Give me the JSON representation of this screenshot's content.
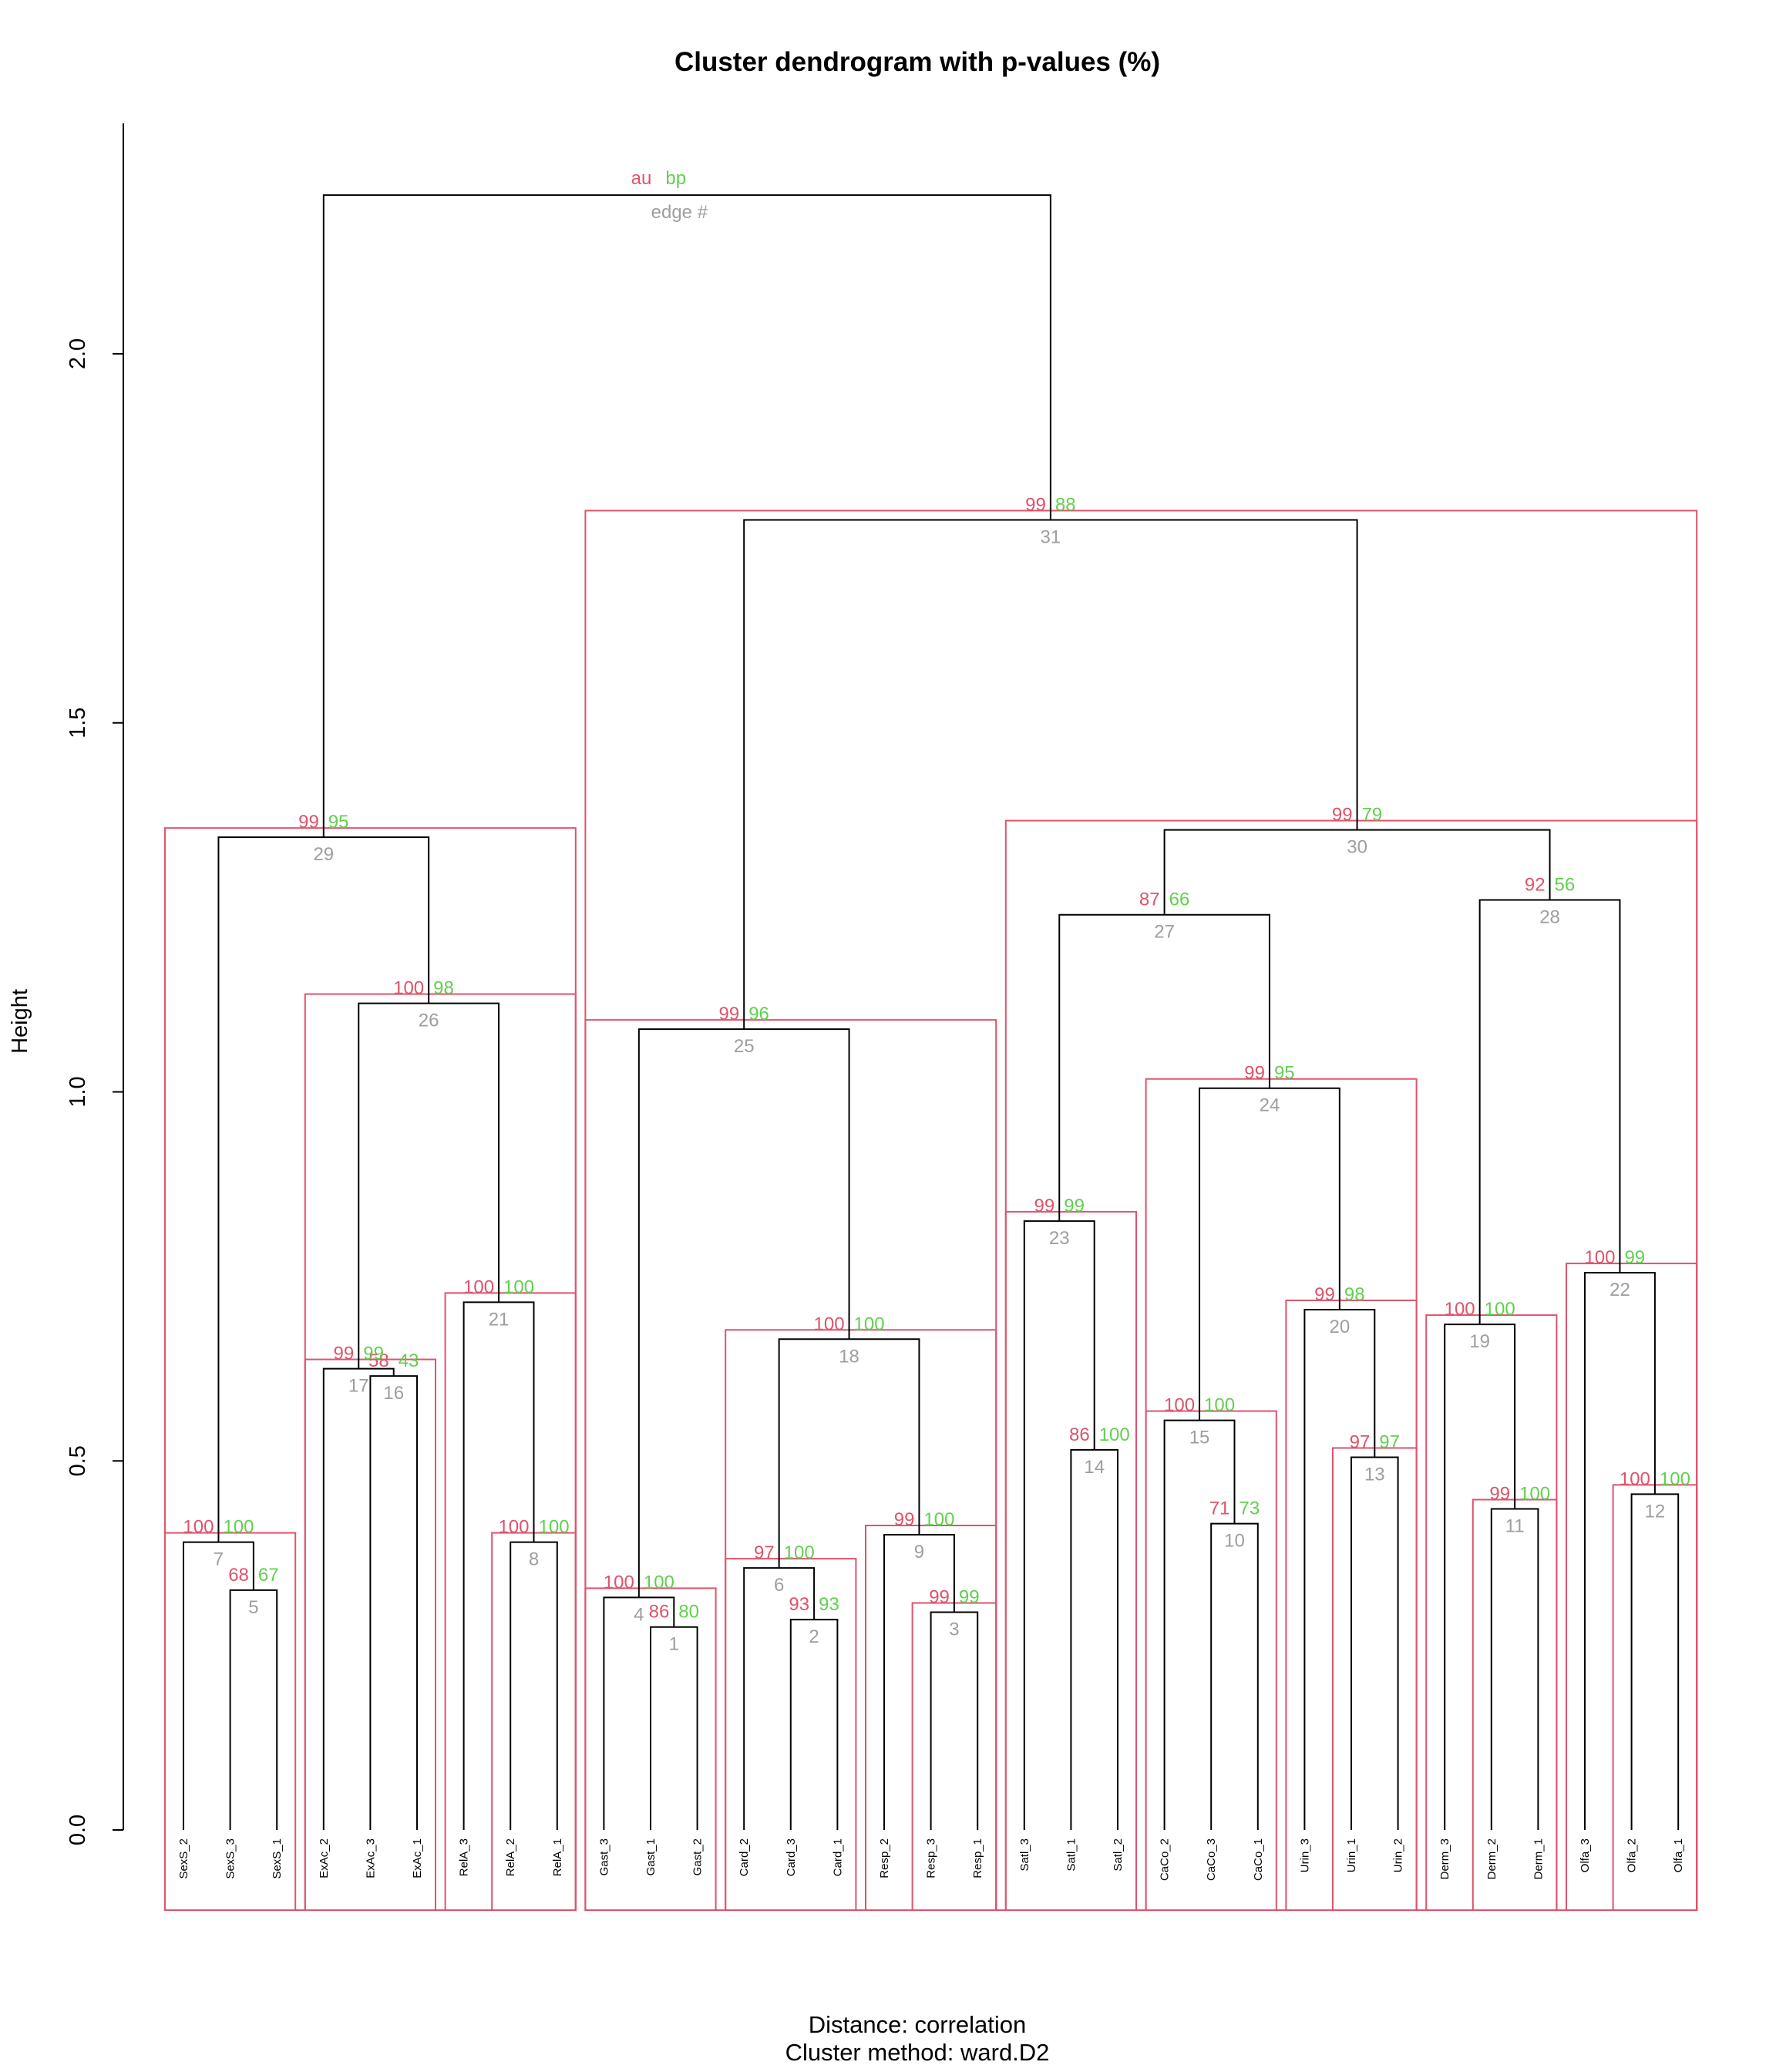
{
  "chart_data": {
    "type": "dendrogram",
    "title": "Cluster dendrogram with p-values (%)",
    "ylabel": "Height",
    "sub_line1": "Distance:  correlation",
    "sub_line2": "Cluster method: ward.D2",
    "ylim": [
      0,
      2.25
    ],
    "yticks": [
      "0.0",
      "0.5",
      "1.0",
      "1.5",
      "2.0"
    ],
    "ytick_values": [
      0,
      0.5,
      1.0,
      1.5,
      2.0
    ],
    "legend": {
      "au": "au",
      "bp": "bp",
      "edge": "edge #"
    },
    "colors": {
      "au": "#DF536B",
      "bp": "#61D04F",
      "edge": "#9E9E9E",
      "rect": "#DF536B",
      "tree": "#000000"
    },
    "leaves": [
      "SexS_2",
      "SexS_3",
      "SexS_1",
      "ExAc_2",
      "ExAc_3",
      "ExAc_1",
      "RelA_3",
      "RelA_2",
      "RelA_1",
      "Gast_3",
      "Gast_1",
      "Gast_2",
      "Card_2",
      "Card_3",
      "Card_1",
      "Resp_2",
      "Resp_3",
      "Resp_1",
      "Satl_3",
      "Satl_1",
      "Satl_2",
      "CaCo_2",
      "CaCo_3",
      "CaCo_1",
      "Urin_3",
      "Urin_1",
      "Urin_2",
      "Derm_3",
      "Derm_2",
      "Derm_1",
      "Olfa_3",
      "Olfa_2",
      "Olfa_1"
    ],
    "merges": [
      {
        "edge": 1,
        "left": "L11",
        "right": "L12",
        "height": 0.275,
        "au": 86,
        "bp": 80
      },
      {
        "edge": 2,
        "left": "L14",
        "right": "L15",
        "height": 0.285,
        "au": 93,
        "bp": 93
      },
      {
        "edge": 3,
        "left": "L17",
        "right": "L18",
        "height": 0.295,
        "au": 99,
        "bp": 99
      },
      {
        "edge": 4,
        "left": "L10",
        "right": "E1",
        "height": 0.315,
        "au": 100,
        "bp": 100
      },
      {
        "edge": 5,
        "left": "L2",
        "right": "L3",
        "height": 0.325,
        "au": 68,
        "bp": 67
      },
      {
        "edge": 6,
        "left": "L13",
        "right": "E2",
        "height": 0.355,
        "au": 97,
        "bp": 100
      },
      {
        "edge": 7,
        "left": "L1",
        "right": "E5",
        "height": 0.39,
        "au": 100,
        "bp": 100
      },
      {
        "edge": 8,
        "left": "L8",
        "right": "L9",
        "height": 0.39,
        "au": 100,
        "bp": 100
      },
      {
        "edge": 9,
        "left": "L16",
        "right": "E3",
        "height": 0.4,
        "au": 99,
        "bp": 100
      },
      {
        "edge": 10,
        "left": "L23",
        "right": "L24",
        "height": 0.415,
        "au": 71,
        "bp": 73
      },
      {
        "edge": 11,
        "left": "L29",
        "right": "L30",
        "height": 0.435,
        "au": 99,
        "bp": 100
      },
      {
        "edge": 12,
        "left": "L32",
        "right": "L33",
        "height": 0.455,
        "au": 100,
        "bp": 100
      },
      {
        "edge": 13,
        "left": "L26",
        "right": "L27",
        "height": 0.505,
        "au": 97,
        "bp": 97
      },
      {
        "edge": 14,
        "left": "L20",
        "right": "L21",
        "height": 0.515,
        "au": 86,
        "bp": 100
      },
      {
        "edge": 15,
        "left": "L22",
        "right": "E10",
        "height": 0.555,
        "au": 100,
        "bp": 100
      },
      {
        "edge": 16,
        "left": "L5",
        "right": "L6",
        "height": 0.615,
        "au": 58,
        "bp": 43
      },
      {
        "edge": 17,
        "left": "L4",
        "right": "E16",
        "height": 0.625,
        "au": 99,
        "bp": 99
      },
      {
        "edge": 18,
        "left": "E6",
        "right": "E9",
        "height": 0.665,
        "au": 100,
        "bp": 100
      },
      {
        "edge": 19,
        "left": "L28",
        "right": "E11",
        "height": 0.685,
        "au": 100,
        "bp": 100
      },
      {
        "edge": 20,
        "left": "L25",
        "right": "E13",
        "height": 0.705,
        "au": 99,
        "bp": 98
      },
      {
        "edge": 21,
        "left": "L7",
        "right": "E8",
        "height": 0.715,
        "au": 100,
        "bp": 100
      },
      {
        "edge": 22,
        "left": "L31",
        "right": "E12",
        "height": 0.755,
        "au": 100,
        "bp": 99
      },
      {
        "edge": 23,
        "left": "L19",
        "right": "E14",
        "height": 0.825,
        "au": 99,
        "bp": 99
      },
      {
        "edge": 24,
        "left": "E15",
        "right": "E20",
        "height": 1.005,
        "au": 99,
        "bp": 95
      },
      {
        "edge": 25,
        "left": "E4",
        "right": "E18",
        "height": 1.085,
        "au": 99,
        "bp": 96
      },
      {
        "edge": 26,
        "left": "E17",
        "right": "E21",
        "height": 1.12,
        "au": 100,
        "bp": 98
      },
      {
        "edge": 27,
        "left": "E23",
        "right": "E24",
        "height": 1.24,
        "au": 87,
        "bp": 66
      },
      {
        "edge": 28,
        "left": "E19",
        "right": "E22",
        "height": 1.26,
        "au": 92,
        "bp": 56
      },
      {
        "edge": 29,
        "left": "E7",
        "right": "E26",
        "height": 1.345,
        "au": 99,
        "bp": 95
      },
      {
        "edge": 30,
        "left": "E27",
        "right": "E28",
        "height": 1.355,
        "au": 99,
        "bp": 79
      },
      {
        "edge": 31,
        "left": "E25",
        "right": "E30",
        "height": 1.775,
        "au": 99,
        "bp": 88
      },
      {
        "edge": 32,
        "left": "E29",
        "right": "E31",
        "height": 2.215,
        "au": null,
        "bp": null
      }
    ],
    "highlight_edges": [
      29,
      26,
      17,
      21,
      8,
      7,
      31,
      25,
      4,
      18,
      6,
      9,
      3,
      30,
      23,
      24,
      15,
      20,
      13,
      19,
      11,
      22,
      12
    ]
  }
}
